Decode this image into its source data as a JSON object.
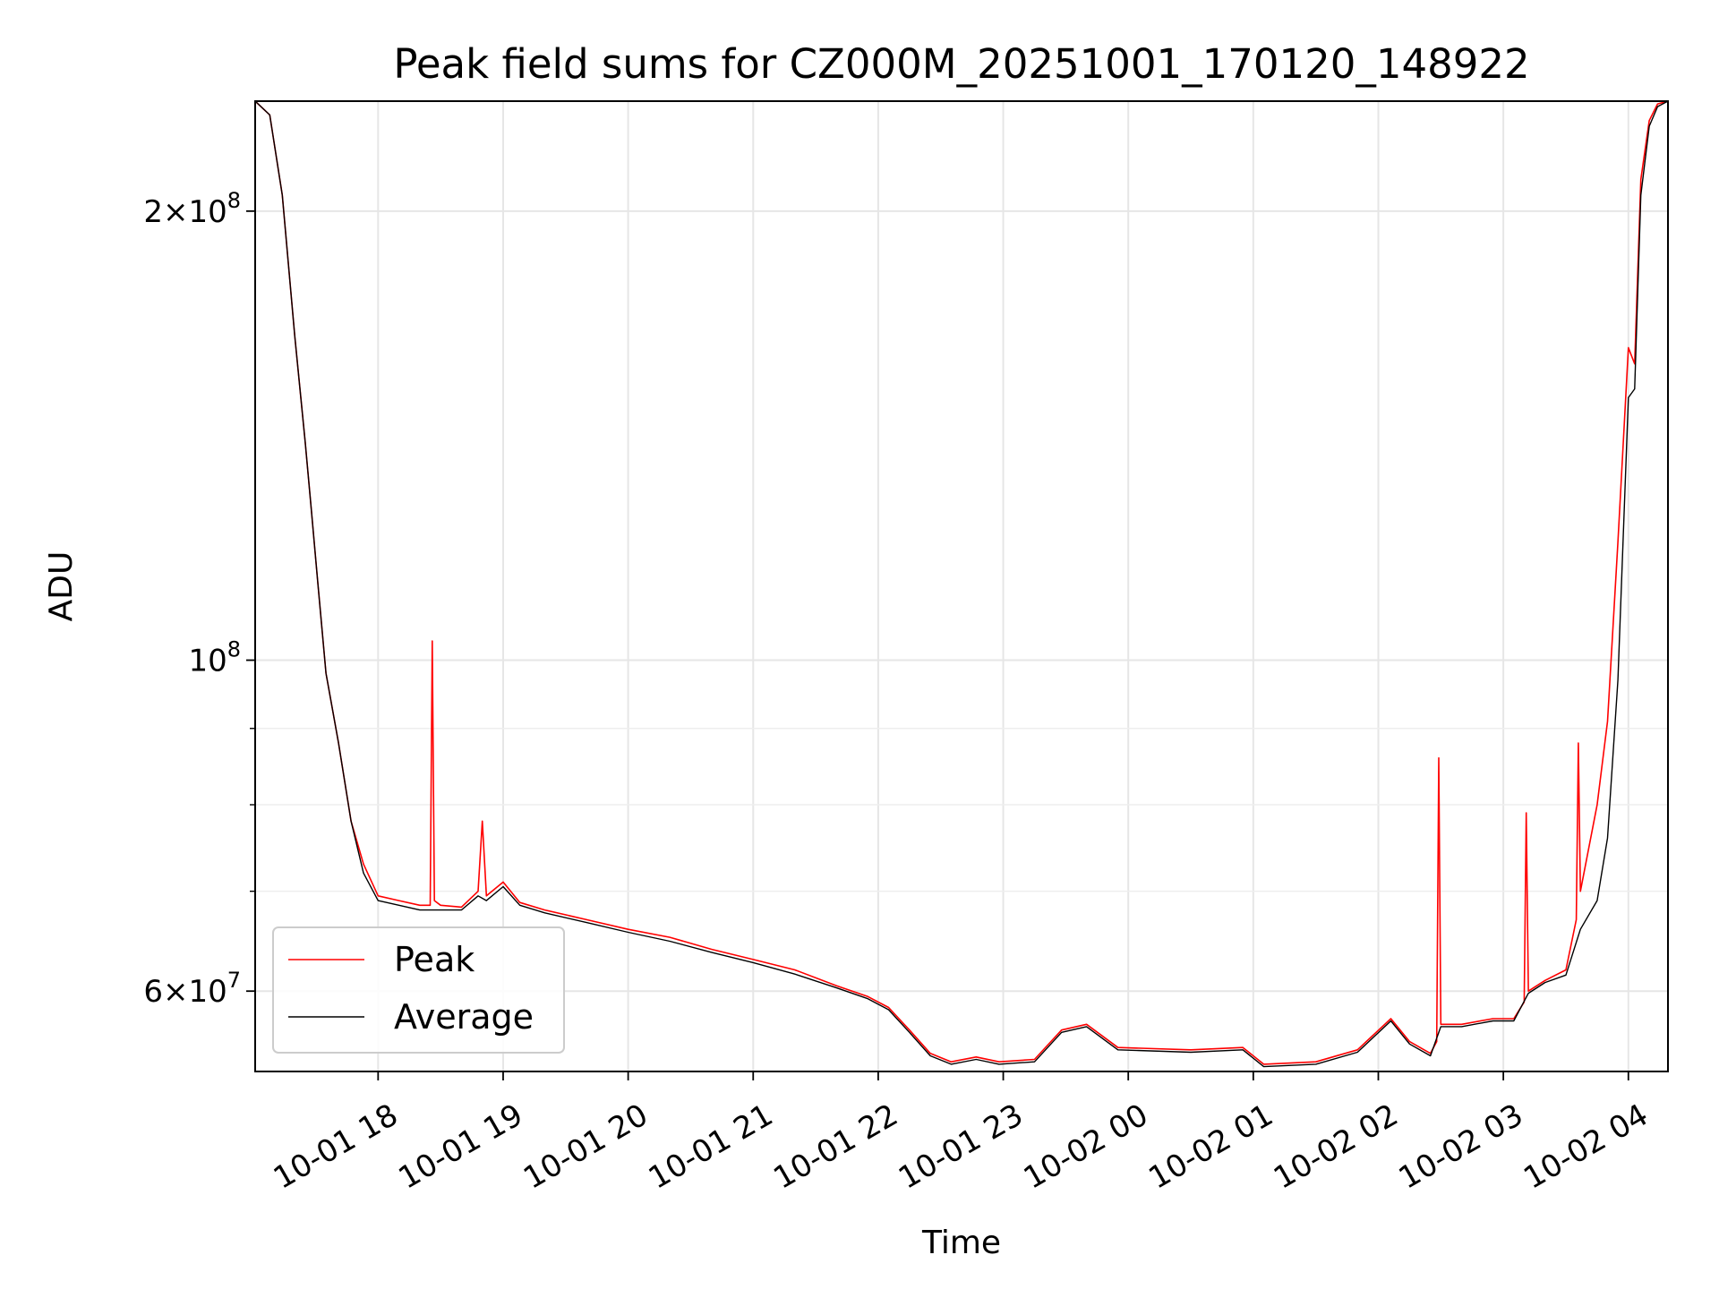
{
  "chart_data": {
    "type": "line",
    "title": "Peak field sums for CZ000M_20251001_170120_148922",
    "xlabel": "Time",
    "ylabel": "ADU",
    "x_tick_labels": [
      "10-01 18",
      "10-01 19",
      "10-01 20",
      "10-01 21",
      "10-01 22",
      "10-01 23",
      "10-02 00",
      "10-02 01",
      "10-02 02",
      "10-02 03",
      "10-02 04"
    ],
    "y_scale": "log",
    "y_tick_labels": [
      {
        "value": 200000000,
        "mantissa": "2",
        "exp": "8"
      },
      {
        "value": 100000000,
        "mantissa": "",
        "exp": "8"
      },
      {
        "value": 60000000,
        "mantissa": "6",
        "exp": "7"
      }
    ],
    "xlim": [
      "2025-10-01 17:01",
      "2025-10-02 04:19"
    ],
    "ylim": [
      53000000,
      237000000
    ],
    "grid": true,
    "legend": {
      "placement": "lower-left"
    },
    "colors": {
      "Peak": "#ff0000",
      "Average": "#000000"
    },
    "series": [
      {
        "name": "Peak",
        "x": [
          "2025-10-01 17:01",
          "2025-10-01 17:08",
          "2025-10-01 17:14",
          "2025-10-01 17:20",
          "2025-10-01 17:25",
          "2025-10-01 17:28",
          "2025-10-01 17:31",
          "2025-10-01 17:35",
          "2025-10-01 17:41",
          "2025-10-01 17:47",
          "2025-10-01 17:53",
          "2025-10-01 18:00",
          "2025-10-01 18:10",
          "2025-10-01 18:20",
          "2025-10-01 18:25",
          "2025-10-01 18:26",
          "2025-10-01 18:27",
          "2025-10-01 18:30",
          "2025-10-01 18:40",
          "2025-10-01 18:48",
          "2025-10-01 18:50",
          "2025-10-01 18:52",
          "2025-10-01 19:00",
          "2025-10-01 19:08",
          "2025-10-01 19:20",
          "2025-10-01 19:40",
          "2025-10-01 20:00",
          "2025-10-01 20:20",
          "2025-10-01 20:40",
          "2025-10-01 21:00",
          "2025-10-01 21:20",
          "2025-10-01 21:40",
          "2025-10-01 21:55",
          "2025-10-01 22:05",
          "2025-10-01 22:15",
          "2025-10-01 22:25",
          "2025-10-01 22:35",
          "2025-10-01 22:47",
          "2025-10-01 22:58",
          "2025-10-01 23:15",
          "2025-10-01 23:28",
          "2025-10-01 23:40",
          "2025-10-01 23:55",
          "2025-10-02 00:30",
          "2025-10-02 00:55",
          "2025-10-02 01:05",
          "2025-10-02 01:30",
          "2025-10-02 01:50",
          "2025-10-02 02:06",
          "2025-10-02 02:15",
          "2025-10-02 02:25",
          "2025-10-02 02:28",
          "2025-10-02 02:29",
          "2025-10-02 02:30",
          "2025-10-02 02:40",
          "2025-10-02 02:55",
          "2025-10-02 03:05",
          "2025-10-02 03:10",
          "2025-10-02 03:11",
          "2025-10-02 03:12",
          "2025-10-02 03:20",
          "2025-10-02 03:30",
          "2025-10-02 03:35",
          "2025-10-02 03:36",
          "2025-10-02 03:37",
          "2025-10-02 03:45",
          "2025-10-02 03:50",
          "2025-10-02 03:55",
          "2025-10-02 04:00",
          "2025-10-02 04:03",
          "2025-10-02 04:06",
          "2025-10-02 04:10",
          "2025-10-02 04:14",
          "2025-10-02 04:19"
        ],
        "y": [
          237000000,
          232000000,
          205000000,
          165000000,
          140000000,
          126000000,
          113000000,
          98000000,
          88000000,
          78000000,
          73000000,
          69500000,
          69000000,
          68500000,
          68500000,
          103000000,
          69000000,
          68500000,
          68300000,
          70000000,
          78000000,
          69500000,
          71000000,
          68800000,
          68000000,
          67000000,
          66000000,
          65200000,
          64000000,
          63000000,
          62000000,
          60500000,
          59500000,
          58500000,
          56500000,
          54500000,
          53800000,
          54200000,
          53800000,
          54000000,
          56500000,
          57000000,
          55000000,
          54800000,
          55000000,
          53600000,
          53800000,
          54800000,
          57500000,
          55500000,
          54500000,
          55500000,
          86000000,
          57000000,
          57000000,
          57500000,
          57500000,
          59000000,
          79000000,
          60000000,
          61000000,
          62000000,
          67000000,
          88000000,
          70000000,
          80000000,
          91000000,
          120000000,
          162000000,
          158000000,
          210000000,
          230000000,
          236000000,
          237000000
        ]
      },
      {
        "name": "Average",
        "x": [
          "2025-10-01 17:01",
          "2025-10-01 17:08",
          "2025-10-01 17:14",
          "2025-10-01 17:20",
          "2025-10-01 17:25",
          "2025-10-01 17:28",
          "2025-10-01 17:31",
          "2025-10-01 17:35",
          "2025-10-01 17:41",
          "2025-10-01 17:47",
          "2025-10-01 17:53",
          "2025-10-01 18:00",
          "2025-10-01 18:10",
          "2025-10-01 18:20",
          "2025-10-01 18:27",
          "2025-10-01 18:30",
          "2025-10-01 18:40",
          "2025-10-01 18:48",
          "2025-10-01 18:52",
          "2025-10-01 19:00",
          "2025-10-01 19:08",
          "2025-10-01 19:20",
          "2025-10-01 19:40",
          "2025-10-01 20:00",
          "2025-10-01 20:20",
          "2025-10-01 20:40",
          "2025-10-01 21:00",
          "2025-10-01 21:20",
          "2025-10-01 21:40",
          "2025-10-01 21:55",
          "2025-10-01 22:05",
          "2025-10-01 22:15",
          "2025-10-01 22:25",
          "2025-10-01 22:35",
          "2025-10-01 22:47",
          "2025-10-01 22:58",
          "2025-10-01 23:15",
          "2025-10-01 23:28",
          "2025-10-01 23:40",
          "2025-10-01 23:55",
          "2025-10-02 00:30",
          "2025-10-02 00:55",
          "2025-10-02 01:05",
          "2025-10-02 01:30",
          "2025-10-02 01:50",
          "2025-10-02 02:06",
          "2025-10-02 02:15",
          "2025-10-02 02:25",
          "2025-10-02 02:30",
          "2025-10-02 02:40",
          "2025-10-02 02:55",
          "2025-10-02 03:05",
          "2025-10-02 03:12",
          "2025-10-02 03:20",
          "2025-10-02 03:30",
          "2025-10-02 03:37",
          "2025-10-02 03:45",
          "2025-10-02 03:50",
          "2025-10-02 03:55",
          "2025-10-02 04:00",
          "2025-10-02 04:03",
          "2025-10-02 04:06",
          "2025-10-02 04:10",
          "2025-10-02 04:14",
          "2025-10-02 04:19"
        ],
        "y": [
          237000000,
          232000000,
          205000000,
          165000000,
          140000000,
          126000000,
          113000000,
          98000000,
          88000000,
          78000000,
          72000000,
          69000000,
          68500000,
          68000000,
          68000000,
          68000000,
          68000000,
          69500000,
          69000000,
          70500000,
          68500000,
          67700000,
          66700000,
          65700000,
          64800000,
          63700000,
          62700000,
          61600000,
          60300000,
          59300000,
          58300000,
          56300000,
          54300000,
          53600000,
          54000000,
          53600000,
          53800000,
          56300000,
          56800000,
          54800000,
          54600000,
          54800000,
          53400000,
          53600000,
          54600000,
          57300000,
          55300000,
          54300000,
          56800000,
          56800000,
          57300000,
          57300000,
          59800000,
          60800000,
          61500000,
          66000000,
          69000000,
          76000000,
          97000000,
          150000000,
          152000000,
          205000000,
          228000000,
          235000000,
          237000000
        ]
      }
    ]
  }
}
